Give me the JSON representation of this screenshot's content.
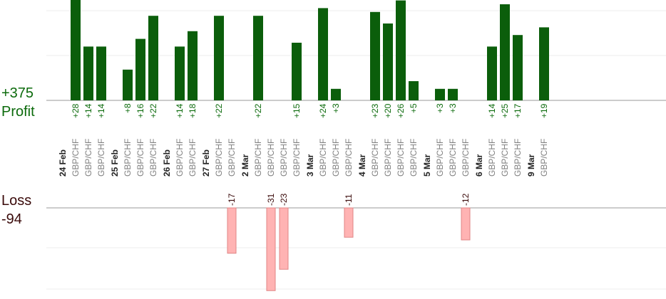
{
  "summary": {
    "profit_total": "+375",
    "profit_label": "Profit",
    "loss_label": "Loss",
    "loss_total": "-94"
  },
  "colors": {
    "profit_bar": "#0b5e0b",
    "profit_text": "#0b6a0b",
    "loss_bar": "#ffb3b3",
    "loss_bar_edge": "#e08585",
    "loss_text": "#3a0a0a",
    "pair_text": "#808080",
    "axis": "#999999",
    "grid": "#eeeeee"
  },
  "chart_data": {
    "type": "bar",
    "groups": [
      {
        "date": "24 Feb",
        "trades": [
          {
            "pair": "GBP/CHF",
            "profit": 28
          },
          {
            "pair": "GBP/CHF",
            "profit": 14
          },
          {
            "pair": "GBP/CHF",
            "profit": 14
          }
        ]
      },
      {
        "date": "25 Feb",
        "trades": [
          {
            "pair": "GBP/CHF",
            "profit": 8
          },
          {
            "pair": "GBP/CHF",
            "profit": 16
          },
          {
            "pair": "GBP/CHF",
            "profit": 22
          }
        ]
      },
      {
        "date": "26 Feb",
        "trades": [
          {
            "pair": "GBP/CHF",
            "profit": 14
          },
          {
            "pair": "GBP/CHF",
            "profit": 18
          }
        ]
      },
      {
        "date": "27 Feb",
        "trades": [
          {
            "pair": "GBP/CHF",
            "profit": 22
          },
          {
            "pair": "GBP/CHF",
            "loss": -17
          }
        ]
      },
      {
        "date": "2 Mar",
        "trades": [
          {
            "pair": "GBP/CHF",
            "profit": 22
          },
          {
            "pair": "GBP/CHF",
            "loss": -31
          },
          {
            "pair": "GBP/CHF",
            "loss": -23
          },
          {
            "pair": "GBP/CHF",
            "profit": 15
          }
        ]
      },
      {
        "date": "3 Mar",
        "trades": [
          {
            "pair": "GBP/CHF",
            "profit": 24
          },
          {
            "pair": "GBP/CHF",
            "profit": 3
          },
          {
            "pair": "GBP/CHF",
            "loss": -11
          }
        ]
      },
      {
        "date": "4 Mar",
        "trades": [
          {
            "pair": "GBP/CHF",
            "profit": 23
          },
          {
            "pair": "GBP/CHF",
            "profit": 20
          },
          {
            "pair": "GBP/CHF",
            "profit": 26
          },
          {
            "pair": "GBP/CHF",
            "profit": 5
          }
        ]
      },
      {
        "date": "5 Mar",
        "trades": [
          {
            "pair": "GBP/CHF",
            "profit": 3
          },
          {
            "pair": "GBP/CHF",
            "profit": 3
          },
          {
            "pair": "GBP/CHF",
            "loss": -12
          }
        ]
      },
      {
        "date": "6 Mar",
        "trades": [
          {
            "pair": "GBP/CHF",
            "profit": 14
          },
          {
            "pair": "GBP/CHF",
            "profit": 25
          },
          {
            "pair": "GBP/CHF",
            "profit": 17
          }
        ]
      },
      {
        "date": "9 Mar",
        "trades": [
          {
            "pair": "GBP/CHF",
            "profit": 19
          }
        ]
      }
    ]
  }
}
